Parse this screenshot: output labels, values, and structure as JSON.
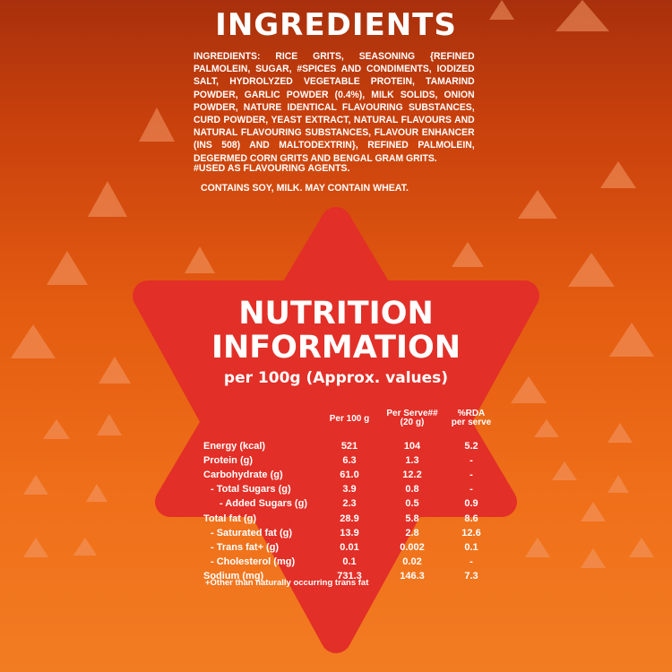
{
  "ingredients_title": "INGREDIENTS",
  "ingredients_text": "INGREDIENTS: RICE GRITS, SEASONING {REFINED PALMOLEIN, SUGAR, #SPICES AND CONDIMENTS, IODIZED SALT, HYDROLYZED VEGETABLE PROTEIN, TAMARIND POWDER, GARLIC POWDER (0.4%), MILK SOLIDS, ONION POWDER, NATURE IDENTICAL FLAVOURING SUBSTANCES, CURD POWDER, YEAST EXTRACT, NATURAL FLAVOURS AND NATURAL FLAVOURING SUBSTANCES, FLAVOUR ENHANCER (INS 508) AND MALTODEXTRIN}, REFINED PALMOLEIN, DEGERMED CORN GRITS AND BENGAL GRAM GRITS.",
  "ingredients_footnote": "#USED AS FLAVOURING AGENTS.",
  "contains": "CONTAINS SOY, MILK. MAY CONTAIN WHEAT.",
  "nutrition": {
    "title_line1": "NUTRITION",
    "title_line2": "INFORMATION",
    "subtitle": "per 100g (Approx. values)",
    "headers": [
      "",
      "Per 100 g",
      "Per Serve## (20 g)",
      "%RDA per serve"
    ],
    "header_parts": {
      "per100": "Per 100 g",
      "serve_a": "Per Serve##",
      "serve_b": "(20 g)",
      "rda_a": "%RDA",
      "rda_b": "per serve"
    },
    "rows": [
      {
        "name": "Energy (kcal)",
        "per100": "521",
        "serve": "104",
        "rda": "5.2"
      },
      {
        "name": "Protein (g)",
        "per100": "6.3",
        "serve": "1.3",
        "rda": "-"
      },
      {
        "name": "Carbohydrate (g)",
        "per100": "61.0",
        "serve": "12.2",
        "rda": "-"
      },
      {
        "name": "- Total Sugars (g)",
        "per100": "3.9",
        "serve": "0.8",
        "rda": "-"
      },
      {
        "name": "- Added Sugars (g)",
        "per100": "2.3",
        "serve": "0.5",
        "rda": "0.9"
      },
      {
        "name": "Total fat (g)",
        "per100": "28.9",
        "serve": "5.8",
        "rda": "8.6"
      },
      {
        "name": "- Saturated fat (g)",
        "per100": "13.9",
        "serve": "2.8",
        "rda": "12.6"
      },
      {
        "name": "- Trans fat+ (g)",
        "per100": "0.01",
        "serve": "0.002",
        "rda": "0.1"
      },
      {
        "name": "- Cholesterol (mg)",
        "per100": "0.1",
        "serve": "0.02",
        "rda": "-"
      },
      {
        "name": "Sodium (mg)",
        "per100": "731.3",
        "serve": "146.3",
        "rda": "7.3"
      }
    ],
    "footnote": "+Other than naturally occurring trans fat"
  },
  "colors": {
    "star": "#e42b24",
    "star_shadow": "#b51c18",
    "triangle_light": "#f5a57a"
  }
}
